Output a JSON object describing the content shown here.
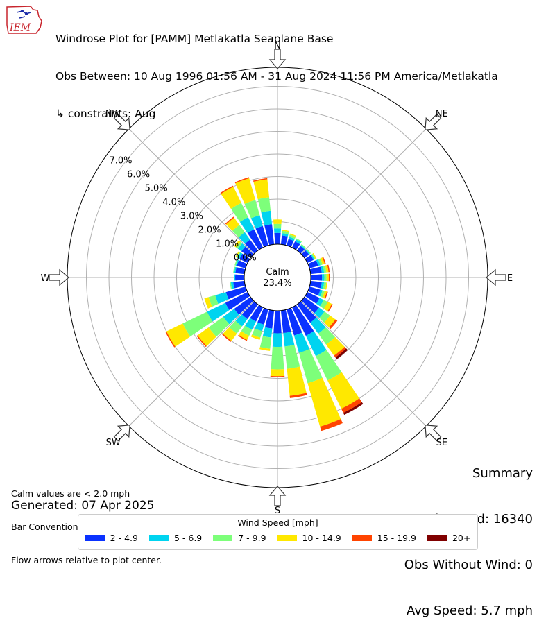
{
  "header": {
    "title": "Windrose Plot for [PAMM] Metlakatla Seaplane Base",
    "obs_between": "Obs Between: 10 Aug 1996 01:56 AM - 31 Aug 2024 11:56 PM America/Metlakatla",
    "constraints": "↳ constraints: Aug",
    "logo_text": "IEM"
  },
  "notes": {
    "calm_note": "Calm values are < 2.0 mph",
    "bar_convention": "Bar Convention: Meteorology",
    "flow_arrows": "Flow arrows relative to plot center.",
    "generated": "Generated: 07 Apr 2025"
  },
  "summary": {
    "heading": "Summary",
    "obs_used": "Obs Used: 16340",
    "obs_without_wind": "Obs Without Wind: 0",
    "avg_speed": "Avg Speed: 5.7 mph"
  },
  "legend": {
    "title": "Wind Speed [mph]",
    "items": [
      {
        "label": "2 - 4.9",
        "color": "#0a32ff"
      },
      {
        "label": "5 - 6.9",
        "color": "#00d4f0"
      },
      {
        "label": "7 - 9.9",
        "color": "#7dff7a"
      },
      {
        "label": "10 - 14.9",
        "color": "#ffe800"
      },
      {
        "label": "15 - 19.9",
        "color": "#ff4400"
      },
      {
        "label": "20+",
        "color": "#800000"
      }
    ]
  },
  "chart_data": {
    "type": "windrose",
    "calm_label": "Calm",
    "calm_percent": "23.4%",
    "radial_ticks": [
      "0.0%",
      "1.0%",
      "2.0%",
      "3.0%",
      "4.0%",
      "5.0%",
      "6.0%",
      "7.0%"
    ],
    "radial_max": 7.0,
    "directions": [
      "N",
      "NE",
      "E",
      "SE",
      "S",
      "SW",
      "W",
      "NW"
    ],
    "sector_width_deg": 10,
    "series_names": [
      "2 - 4.9",
      "5 - 6.9",
      "7 - 9.9",
      "10 - 14.9",
      "15 - 19.9",
      "20+"
    ],
    "sectors": [
      {
        "dir": 0,
        "values": [
          0.5,
          0.2,
          0.2,
          0.2,
          0.0,
          0.0
        ]
      },
      {
        "dir": 10,
        "values": [
          0.4,
          0.1,
          0.1,
          0.05,
          0.0,
          0.0
        ]
      },
      {
        "dir": 20,
        "values": [
          0.3,
          0.1,
          0.1,
          0.05,
          0.0,
          0.0
        ]
      },
      {
        "dir": 30,
        "values": [
          0.3,
          0.1,
          0.05,
          0.0,
          0.0,
          0.0
        ]
      },
      {
        "dir": 40,
        "values": [
          0.25,
          0.05,
          0.05,
          0.0,
          0.0,
          0.0
        ]
      },
      {
        "dir": 50,
        "values": [
          0.25,
          0.05,
          0.05,
          0.0,
          0.0,
          0.0
        ]
      },
      {
        "dir": 60,
        "values": [
          0.3,
          0.05,
          0.05,
          0.05,
          0.0,
          0.0
        ]
      },
      {
        "dir": 70,
        "values": [
          0.4,
          0.1,
          0.1,
          0.1,
          0.05,
          0.0
        ]
      },
      {
        "dir": 80,
        "values": [
          0.5,
          0.1,
          0.1,
          0.1,
          0.05,
          0.0
        ]
      },
      {
        "dir": 90,
        "values": [
          0.5,
          0.1,
          0.1,
          0.1,
          0.05,
          0.0
        ]
      },
      {
        "dir": 100,
        "values": [
          0.5,
          0.1,
          0.1,
          0.05,
          0.0,
          0.0
        ]
      },
      {
        "dir": 110,
        "values": [
          0.5,
          0.1,
          0.1,
          0.1,
          0.05,
          0.0
        ]
      },
      {
        "dir": 120,
        "values": [
          0.6,
          0.2,
          0.2,
          0.2,
          0.05,
          0.0
        ]
      },
      {
        "dir": 130,
        "values": [
          0.8,
          0.3,
          0.3,
          0.3,
          0.1,
          0.0
        ]
      },
      {
        "dir": 140,
        "values": [
          1.0,
          0.6,
          0.6,
          0.6,
          0.1,
          0.1
        ]
      },
      {
        "dir": 150,
        "values": [
          1.4,
          1.0,
          1.2,
          1.4,
          0.2,
          0.1
        ]
      },
      {
        "dir": 160,
        "values": [
          1.2,
          0.8,
          1.4,
          2.0,
          0.2,
          0.0
        ]
      },
      {
        "dir": 170,
        "values": [
          1.0,
          0.6,
          1.0,
          1.2,
          0.1,
          0.0
        ]
      },
      {
        "dir": 180,
        "values": [
          1.0,
          0.6,
          1.0,
          0.3,
          0.05,
          0.0
        ]
      },
      {
        "dir": 190,
        "values": [
          0.8,
          0.4,
          0.5,
          0.1,
          0.0,
          0.0
        ]
      },
      {
        "dir": 200,
        "values": [
          0.7,
          0.3,
          0.3,
          0.1,
          0.0,
          0.0
        ]
      },
      {
        "dir": 210,
        "values": [
          0.7,
          0.4,
          0.3,
          0.2,
          0.05,
          0.0
        ]
      },
      {
        "dir": 220,
        "values": [
          0.8,
          0.4,
          0.4,
          0.4,
          0.05,
          0.0
        ]
      },
      {
        "dir": 230,
        "values": [
          0.9,
          0.6,
          0.8,
          0.6,
          0.05,
          0.0
        ]
      },
      {
        "dir": 240,
        "values": [
          1.1,
          0.9,
          1.2,
          0.8,
          0.05,
          0.0
        ]
      },
      {
        "dir": 250,
        "values": [
          0.9,
          0.5,
          0.3,
          0.2,
          0.0,
          0.0
        ]
      },
      {
        "dir": 260,
        "values": [
          0.5,
          0.1,
          0.05,
          0.0,
          0.0,
          0.0
        ]
      },
      {
        "dir": 270,
        "values": [
          0.4,
          0.05,
          0.0,
          0.0,
          0.0,
          0.0
        ]
      },
      {
        "dir": 280,
        "values": [
          0.4,
          0.05,
          0.05,
          0.0,
          0.0,
          0.0
        ]
      },
      {
        "dir": 290,
        "values": [
          0.4,
          0.05,
          0.05,
          0.0,
          0.0,
          0.0
        ]
      },
      {
        "dir": 300,
        "values": [
          0.4,
          0.1,
          0.05,
          0.05,
          0.0,
          0.0
        ]
      },
      {
        "dir": 310,
        "values": [
          0.5,
          0.2,
          0.1,
          0.1,
          0.0,
          0.0
        ]
      },
      {
        "dir": 320,
        "values": [
          0.6,
          0.4,
          0.4,
          0.4,
          0.05,
          0.0
        ]
      },
      {
        "dir": 330,
        "values": [
          0.9,
          0.6,
          0.7,
          0.8,
          0.05,
          0.0
        ]
      },
      {
        "dir": 340,
        "values": [
          0.9,
          0.5,
          0.7,
          1.0,
          0.05,
          0.0
        ]
      },
      {
        "dir": 350,
        "values": [
          0.9,
          0.6,
          0.6,
          0.8,
          0.05,
          0.0
        ]
      }
    ]
  }
}
